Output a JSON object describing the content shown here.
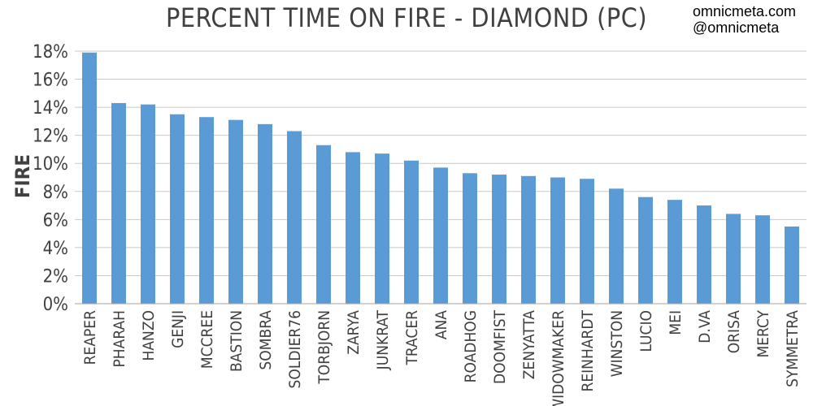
{
  "watermark": {
    "line1": "omnicmeta.com",
    "line2": "@omnicmeta"
  },
  "chart_data": {
    "type": "bar",
    "title": "PERCENT TIME ON FIRE - DIAMOND (PC)",
    "xlabel": "",
    "ylabel": "FIRE",
    "ylim": [
      0,
      18
    ],
    "yticks": [
      "0%",
      "2%",
      "4%",
      "6%",
      "8%",
      "10%",
      "12%",
      "14%",
      "16%",
      "18%"
    ],
    "grid": true,
    "bar_color": "#5b9bd5",
    "categories": [
      "REAPER",
      "PHARAH",
      "HANZO",
      "GENJI",
      "MCCREE",
      "BASTION",
      "SOMBRA",
      "SOLDIER76",
      "TORBJORN",
      "ZARYA",
      "JUNKRAT",
      "TRACER",
      "ANA",
      "ROADHOG",
      "DOOMFIST",
      "ZENYATTA",
      "WIDOWMAKER",
      "REINHARDT",
      "WINSTON",
      "LUCIO",
      "MEI",
      "D.VA",
      "ORISA",
      "MERCY",
      "SYMMETRA"
    ],
    "values": [
      17.9,
      14.3,
      14.2,
      13.5,
      13.3,
      13.1,
      12.8,
      12.3,
      11.3,
      10.8,
      10.7,
      10.2,
      9.7,
      9.3,
      9.2,
      9.1,
      9.0,
      8.9,
      8.2,
      7.6,
      7.4,
      7.0,
      6.4,
      6.3,
      5.5
    ]
  }
}
